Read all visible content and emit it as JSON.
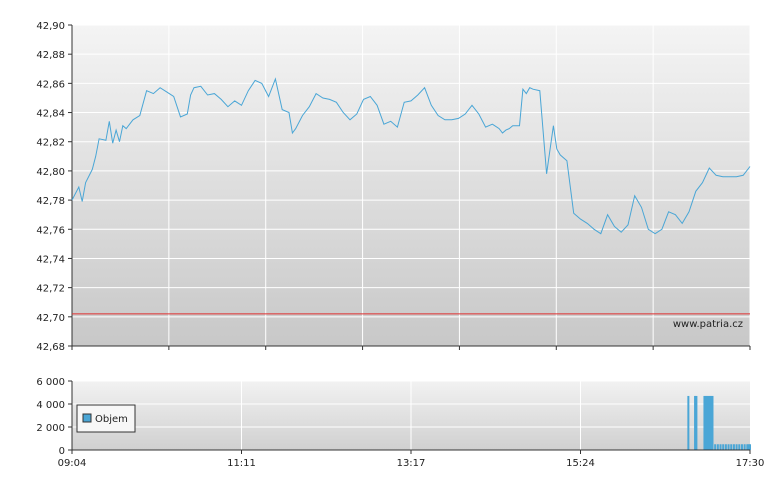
{
  "chart_data": [
    {
      "type": "line",
      "title": "",
      "xlabel": "",
      "ylabel": "",
      "ylim": [
        42.68,
        42.9
      ],
      "y_ticks": [
        "42,90",
        "42,88",
        "42,86",
        "42,84",
        "42,82",
        "42,80",
        "42,78",
        "42,76",
        "42,74",
        "42,72",
        "42,70",
        "42,68"
      ],
      "grid": true,
      "watermark": "www.patria.cz",
      "reference_line": {
        "y": 42.702,
        "color": "#e03030"
      },
      "line_color": "#4aa6d6",
      "series": [
        {
          "x": [
            0.0,
            0.01,
            0.015,
            0.02,
            0.03,
            0.035,
            0.04,
            0.05,
            0.055,
            0.06,
            0.065,
            0.07,
            0.075,
            0.08,
            0.09,
            0.1,
            0.11,
            0.12,
            0.13,
            0.14,
            0.15,
            0.16,
            0.17,
            0.175,
            0.18,
            0.19,
            0.2,
            0.21,
            0.22,
            0.23,
            0.24,
            0.25,
            0.26,
            0.27,
            0.28,
            0.29,
            0.3,
            0.31,
            0.32,
            0.325,
            0.33,
            0.34,
            0.35,
            0.36,
            0.37,
            0.38,
            0.39,
            0.4,
            0.41,
            0.42,
            0.43,
            0.44,
            0.45,
            0.46,
            0.47,
            0.48,
            0.49,
            0.5,
            0.51,
            0.52,
            0.53,
            0.54,
            0.55,
            0.56,
            0.57,
            0.58,
            0.59,
            0.6,
            0.61,
            0.62,
            0.63,
            0.635,
            0.64,
            0.645,
            0.65,
            0.66,
            0.665,
            0.67,
            0.675,
            0.68,
            0.69,
            0.7,
            0.71,
            0.715,
            0.72,
            0.73,
            0.74,
            0.75,
            0.76,
            0.77,
            0.78,
            0.79,
            0.8,
            0.81,
            0.82,
            0.83,
            0.84,
            0.85,
            0.86,
            0.87,
            0.88,
            0.89,
            0.9,
            0.91,
            0.92,
            0.93,
            0.94,
            0.95,
            0.96,
            0.97,
            0.98,
            0.99,
            1.0
          ],
          "values": [
            42.78,
            42.789,
            42.779,
            42.792,
            42.801,
            42.81,
            42.822,
            42.821,
            42.834,
            42.819,
            42.828,
            42.82,
            42.831,
            42.829,
            42.835,
            42.838,
            42.855,
            42.853,
            42.857,
            42.854,
            42.851,
            42.837,
            42.839,
            42.852,
            42.857,
            42.858,
            42.852,
            42.853,
            42.849,
            42.844,
            42.848,
            42.845,
            42.855,
            42.862,
            42.86,
            42.851,
            42.863,
            42.842,
            42.84,
            42.826,
            42.829,
            42.838,
            42.844,
            42.853,
            42.85,
            42.849,
            42.847,
            42.84,
            42.835,
            42.839,
            42.849,
            42.851,
            42.845,
            42.832,
            42.834,
            42.83,
            42.847,
            42.848,
            42.852,
            42.857,
            42.845,
            42.838,
            42.835,
            42.835,
            42.836,
            42.839,
            42.845,
            42.839,
            42.83,
            42.832,
            42.829,
            42.826,
            42.828,
            42.829,
            42.831,
            42.831,
            42.856,
            42.853,
            42.857,
            42.856,
            42.855,
            42.798,
            42.831,
            42.815,
            42.811,
            42.807,
            42.771,
            42.767,
            42.764,
            42.76,
            42.757,
            42.77,
            42.762,
            42.758,
            42.763,
            42.783,
            42.775,
            42.76,
            42.757,
            42.76,
            42.772,
            42.77,
            42.764,
            42.772,
            42.786,
            42.792,
            42.802,
            42.797,
            42.796,
            42.796,
            42.796,
            42.797,
            42.803
          ]
        }
      ]
    },
    {
      "type": "bar",
      "title": "",
      "xlabel": "",
      "ylabel": "",
      "ylim": [
        0,
        6000
      ],
      "y_ticks": [
        "6 000",
        "4 000",
        "2 000",
        "0"
      ],
      "x_ticks": [
        "09:04",
        "11:11",
        "13:17",
        "15:24",
        "17:30"
      ],
      "grid": true,
      "legend": {
        "label": "Objem",
        "placement": "bottom-left"
      },
      "bar_color": "#4aa6d6",
      "x_range_minutes": [
        544,
        1050
      ],
      "bars": {
        "minute": [
          1004,
          1009,
          1010,
          1016,
          1017,
          1018,
          1019,
          1020,
          1021,
          1022,
          1024,
          1026,
          1028,
          1030,
          1032,
          1034,
          1036,
          1038,
          1040,
          1042,
          1044,
          1046,
          1048,
          1049,
          1050
        ],
        "value": [
          4700,
          4700,
          4700,
          4700,
          4700,
          4700,
          4700,
          4700,
          4700,
          4700,
          500,
          500,
          500,
          500,
          500,
          500,
          500,
          500,
          500,
          500,
          500,
          500,
          500,
          500,
          500
        ]
      }
    }
  ]
}
